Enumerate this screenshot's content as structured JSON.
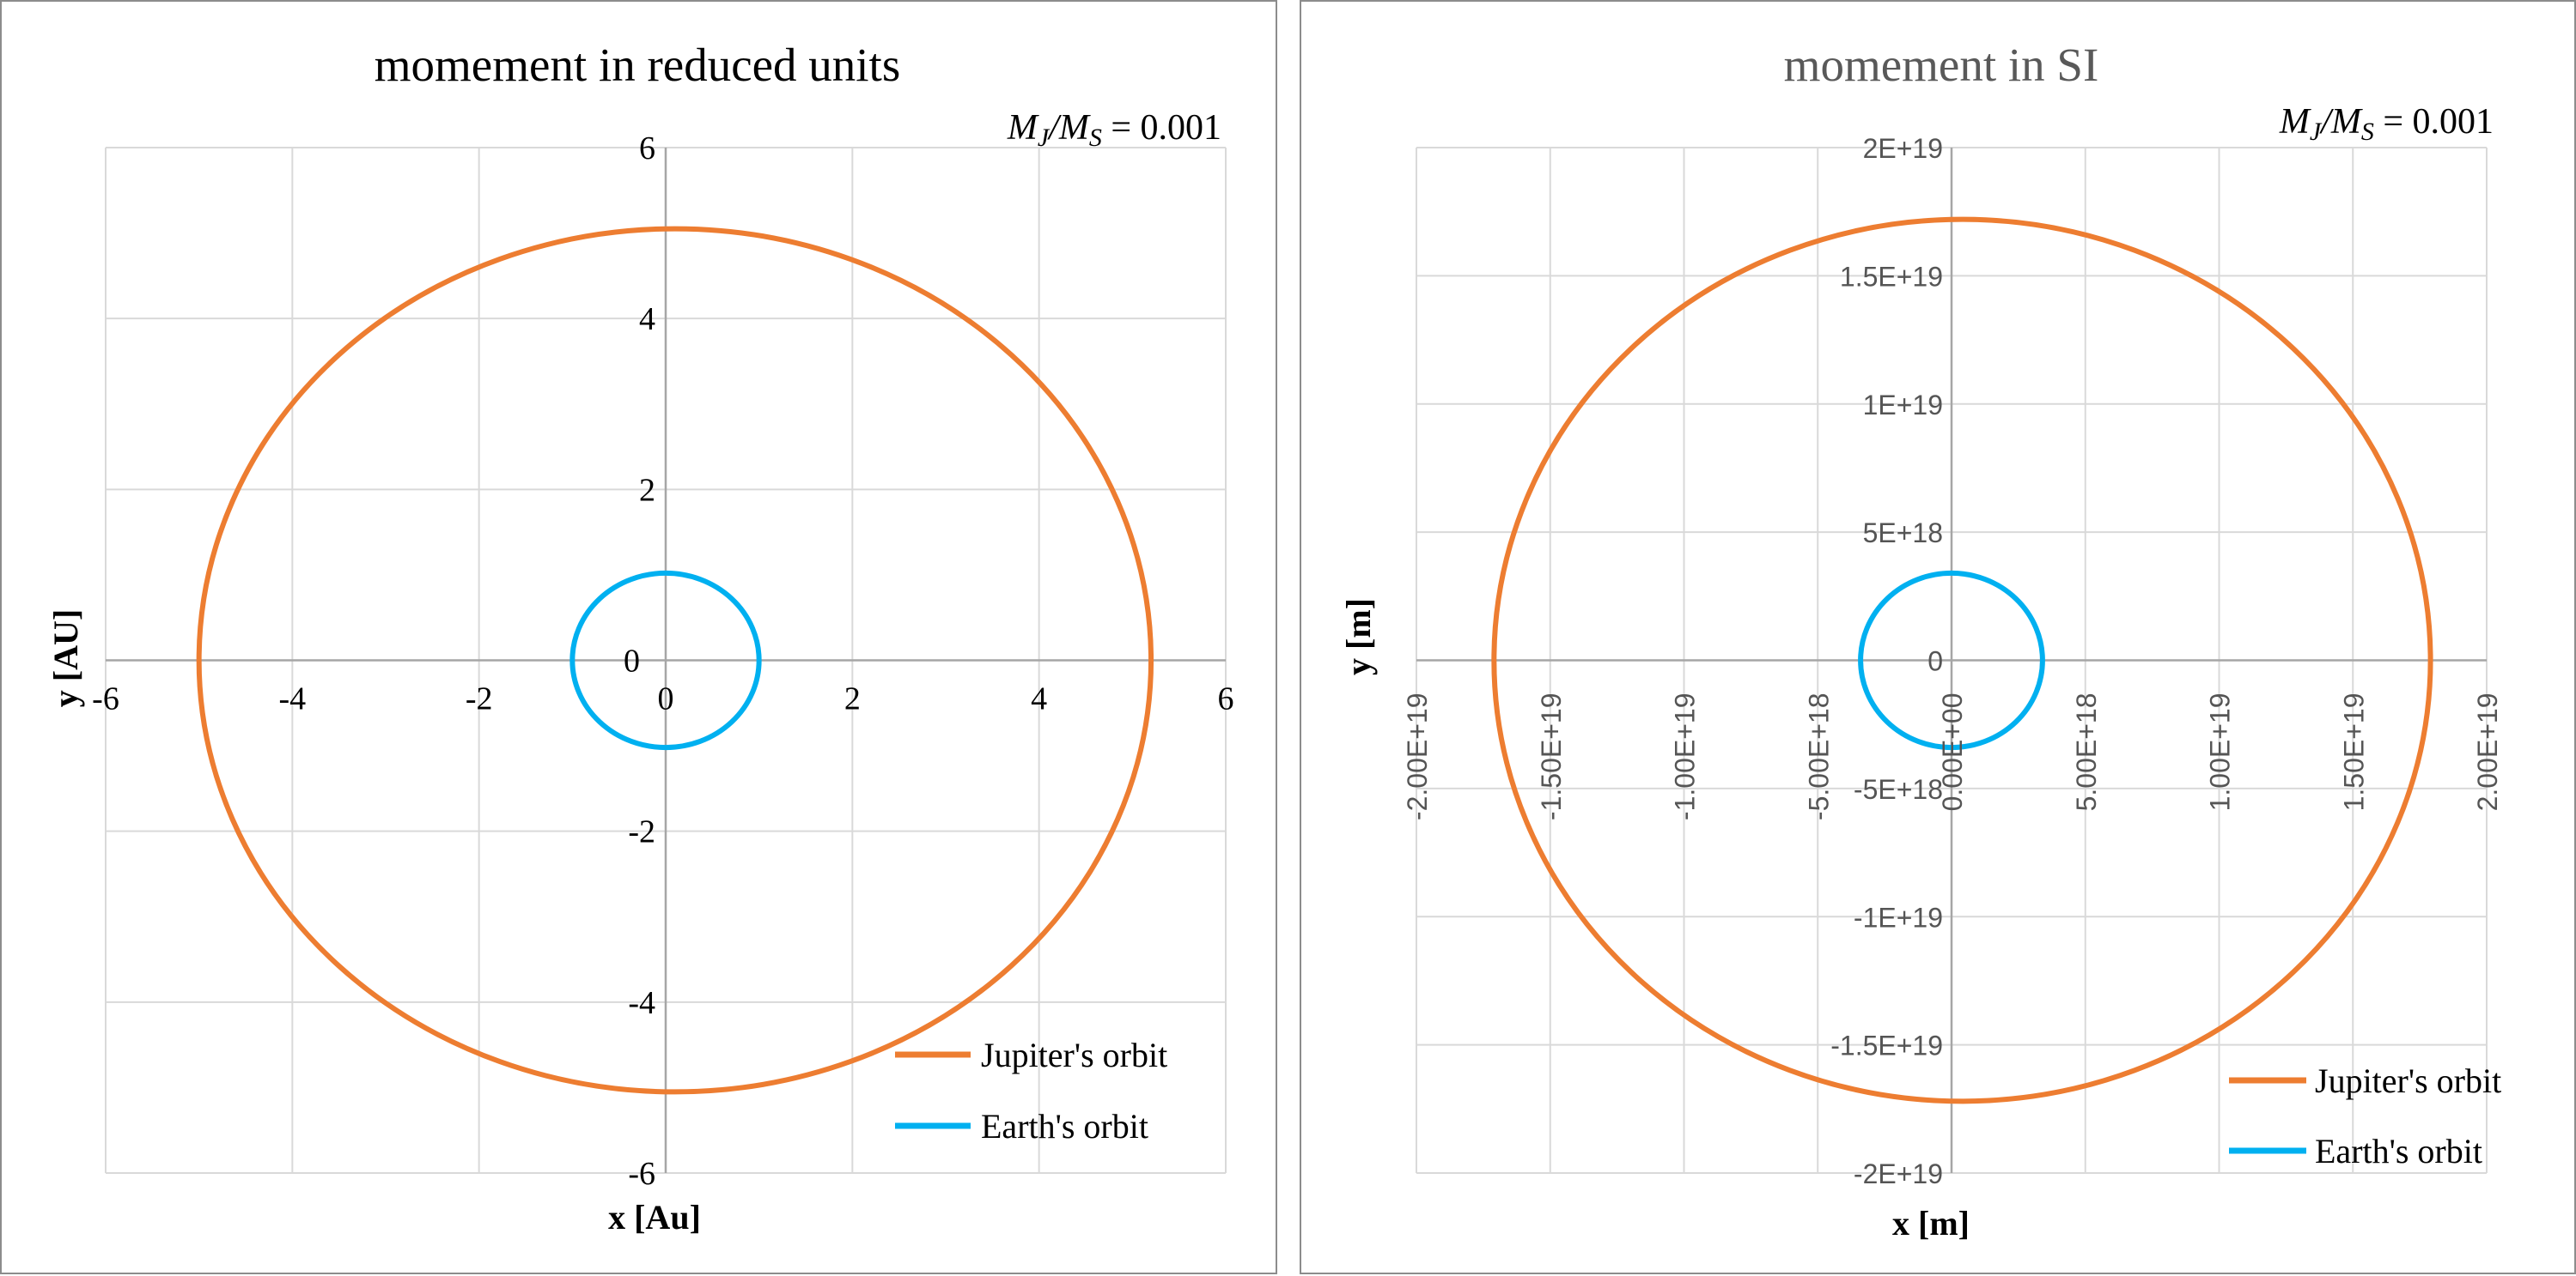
{
  "colors": {
    "jupiter": "#ed7d31",
    "earth": "#00b0f0",
    "grid": "#d9d9d9",
    "axis": "#a6a6a6",
    "title_left": "#000000",
    "title_right": "#595959"
  },
  "chart_data": [
    {
      "type": "line",
      "title": "momement in reduced units",
      "annotation": {
        "numerator": "M",
        "numerator_sub": "J",
        "slash": "/",
        "denominator": "M",
        "denominator_sub": "S",
        "equals": " = 0.001"
      },
      "xlabel": "x [Au]",
      "ylabel": "y [AU]",
      "xlim": [
        -6,
        6
      ],
      "ylim": [
        -6,
        6
      ],
      "x_ticks": [
        -6,
        -4,
        -2,
        0,
        2,
        4,
        6
      ],
      "y_ticks": [
        -6,
        -4,
        -2,
        0,
        2,
        4,
        6
      ],
      "x_tick_labels": [
        "-6",
        "-4",
        "-2",
        "0",
        "2",
        "4",
        "6"
      ],
      "y_tick_labels": [
        "-6",
        "-4",
        "-2",
        "0",
        "2",
        "4",
        "6"
      ],
      "grid": true,
      "legend_position": "bottom-right",
      "series": [
        {
          "name": "Jupiter's orbit",
          "shape": "ellipse",
          "center": [
            0.1,
            0.0
          ],
          "radius_x": 5.1,
          "radius_y": 5.05
        },
        {
          "name": "Earth's orbit",
          "shape": "ellipse",
          "center": [
            0.0,
            0.0
          ],
          "radius_x": 1.0,
          "radius_y": 1.02
        }
      ]
    },
    {
      "type": "line",
      "title": "momement in SI",
      "annotation": {
        "numerator": "M",
        "numerator_sub": "J",
        "slash": "/",
        "denominator": "M",
        "denominator_sub": "S",
        "equals": " = 0.001"
      },
      "xlabel": "x [m]",
      "ylabel": "y [m]",
      "xlim": [
        -2e+19,
        2e+19
      ],
      "ylim": [
        -2e+19,
        2e+19
      ],
      "x_ticks": [
        -2e+19,
        -1.5e+19,
        -1e+19,
        -5e+18,
        0,
        5e+18,
        1e+19,
        1.5e+19,
        2e+19
      ],
      "y_ticks": [
        -2e+19,
        -1.5e+19,
        -1e+19,
        -5e+18,
        0,
        5e+18,
        1e+19,
        1.5e+19,
        2e+19
      ],
      "x_tick_labels": [
        "-2.00E+19",
        "-1.50E+19",
        "-1.00E+19",
        "-5.00E+18",
        "0.00E+00",
        "5.00E+18",
        "1.00E+19",
        "1.50E+19",
        "2.00E+19"
      ],
      "y_tick_labels": [
        "-2E+19",
        "-1.5E+19",
        "-1E+19",
        "-5E+18",
        "0",
        "5E+18",
        "1E+19",
        "1.5E+19",
        "2E+19"
      ],
      "grid": true,
      "legend_position": "bottom-right",
      "series": [
        {
          "name": "Jupiter's orbit",
          "shape": "ellipse",
          "center": [
            4e+17,
            0.0
          ],
          "radius_x": 1.75e+19,
          "radius_y": 1.72e+19
        },
        {
          "name": "Earth's orbit",
          "shape": "ellipse",
          "center": [
            0.0,
            0.0
          ],
          "radius_x": 3.4e+18,
          "radius_y": 3.4e+18
        }
      ]
    }
  ]
}
